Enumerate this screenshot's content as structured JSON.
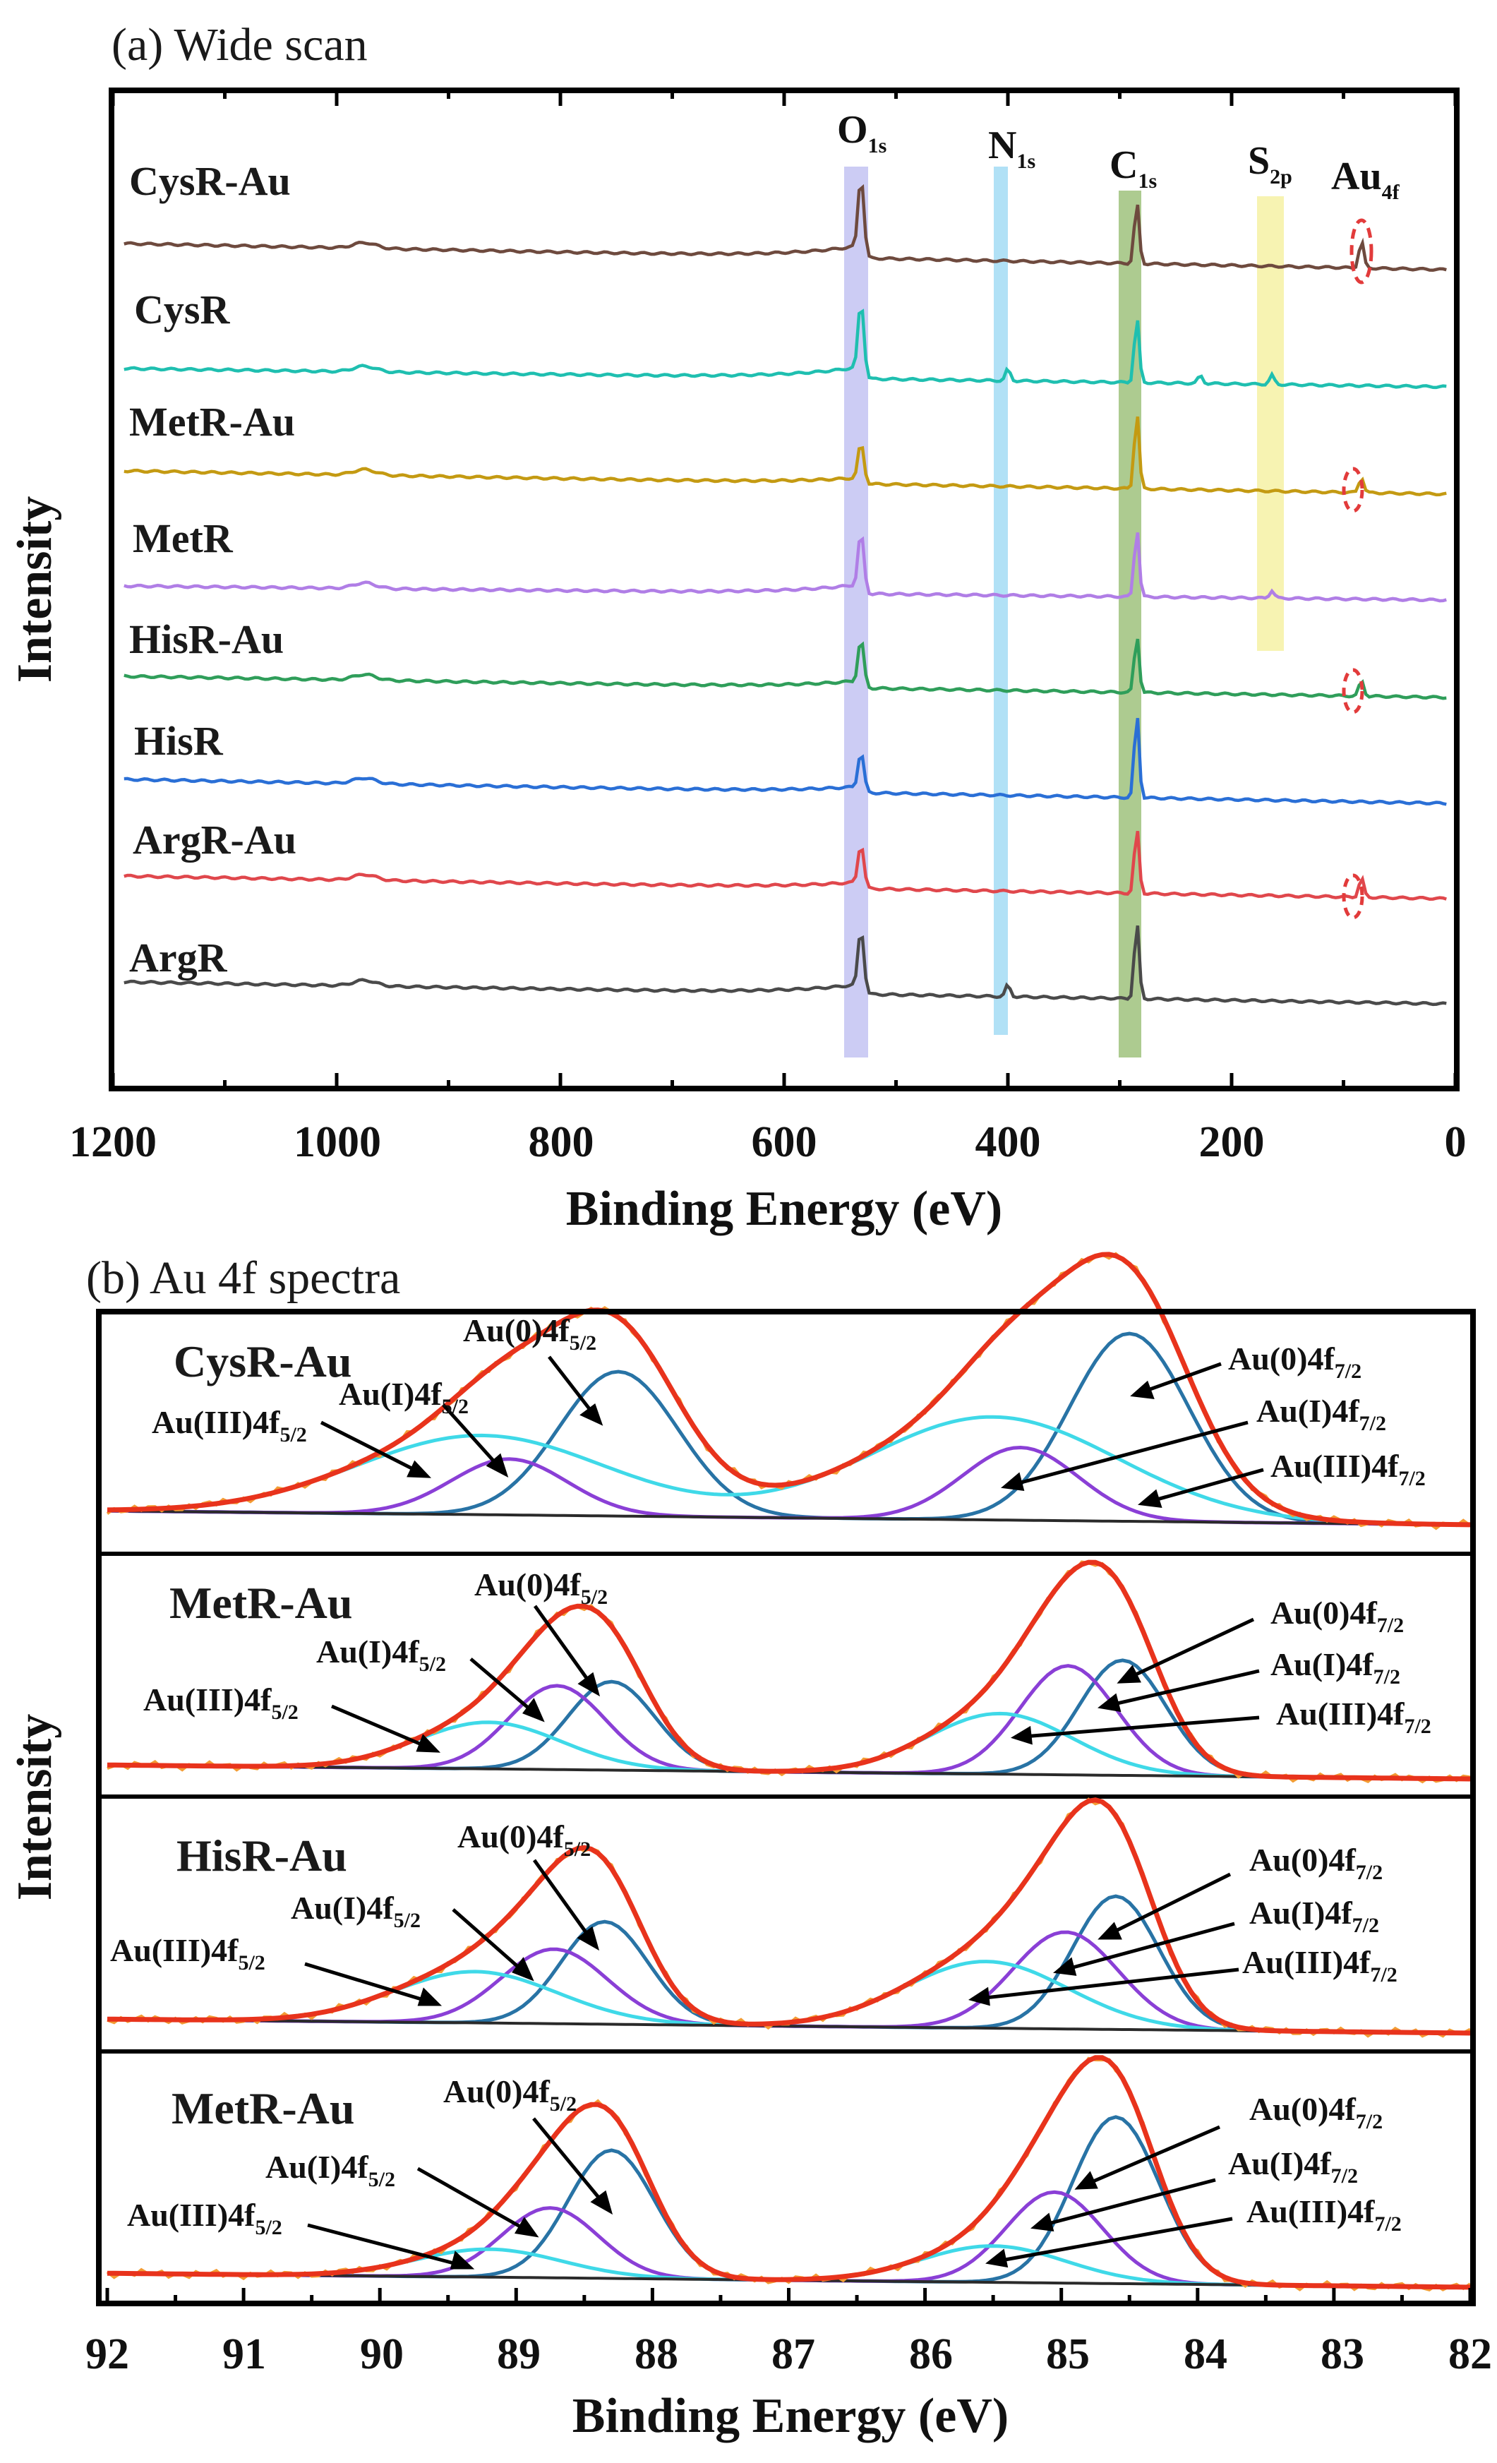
{
  "chart_data": [
    {
      "type": "line",
      "panel": "a",
      "title": "(a) Wide scan",
      "xlabel": "Binding Energy (eV)",
      "ylabel": "Intensity",
      "xlim": [
        1200,
        0
      ],
      "x_reversed": true,
      "x_ticks": [
        1200,
        1000,
        800,
        600,
        400,
        200,
        0
      ],
      "series": [
        {
          "name": "CysR-Au",
          "color": "#6e4a3e",
          "peaks": [
            {
              "x": 531,
              "h": 1.0,
              "label": "O 1s"
            },
            {
              "x": 284.8,
              "h": 0.8,
              "label": "C 1s"
            },
            {
              "x": 84,
              "h": 0.35,
              "label": "Au 4f"
            }
          ]
        },
        {
          "name": "CysR",
          "color": "#1fbfb0",
          "peaks": [
            {
              "x": 531,
              "h": 0.95
            },
            {
              "x": 400,
              "h": 0.15
            },
            {
              "x": 284.8,
              "h": 0.85
            },
            {
              "x": 228,
              "h": 0.1
            },
            {
              "x": 164,
              "h": 0.12
            }
          ]
        },
        {
          "name": "MetR-Au",
          "color": "#c49a12",
          "peaks": [
            {
              "x": 531,
              "h": 0.5
            },
            {
              "x": 284.8,
              "h": 1.0
            },
            {
              "x": 84,
              "h": 0.2
            }
          ]
        },
        {
          "name": "MetR",
          "color": "#b07ee6",
          "peaks": [
            {
              "x": 531,
              "h": 0.75
            },
            {
              "x": 284.8,
              "h": 0.9
            },
            {
              "x": 164,
              "h": 0.1
            }
          ]
        },
        {
          "name": "HisR-Au",
          "color": "#2f9e5a",
          "peaks": [
            {
              "x": 531,
              "h": 0.6
            },
            {
              "x": 284.8,
              "h": 0.75
            },
            {
              "x": 84,
              "h": 0.2
            }
          ]
        },
        {
          "name": "HisR",
          "color": "#2a6fd6",
          "peaks": [
            {
              "x": 531,
              "h": 0.5
            },
            {
              "x": 284.8,
              "h": 1.1
            }
          ]
        },
        {
          "name": "ArgR-Au",
          "color": "#e0474c",
          "peaks": [
            {
              "x": 531,
              "h": 0.55
            },
            {
              "x": 284.8,
              "h": 0.85
            },
            {
              "x": 84,
              "h": 0.25
            }
          ]
        },
        {
          "name": "ArgR",
          "color": "#4a4a4a",
          "peaks": [
            {
              "x": 531,
              "h": 0.8
            },
            {
              "x": 400,
              "h": 0.15
            },
            {
              "x": 284.8,
              "h": 1.0
            }
          ]
        }
      ],
      "highlight_bands": [
        {
          "label_main": "O",
          "label_sub": "1s",
          "x": 531,
          "color": "#b8b8f0"
        },
        {
          "label_main": "N",
          "label_sub": "1s",
          "x": 400,
          "color": "#a9def5"
        },
        {
          "label_main": "C",
          "label_sub": "1s",
          "x": 284.8,
          "color": "#9fc27c"
        },
        {
          "label_main": "S",
          "label_sub": "2p",
          "x": 164,
          "color": "#f5f0a8"
        },
        {
          "label_main": "Au",
          "label_sub": "4f",
          "x": 84,
          "color": "none"
        }
      ]
    },
    {
      "type": "line",
      "panel": "b",
      "title": "(b) Au 4f spectra",
      "xlabel": "Binding Energy (eV)",
      "ylabel": "Intensity",
      "xlim": [
        92,
        82
      ],
      "x_reversed": true,
      "x_ticks": [
        92,
        91,
        90,
        89,
        88,
        87,
        86,
        85,
        84,
        83,
        82
      ],
      "component_colors": {
        "envelope": "#e8331c",
        "raw": "#f39c34",
        "Au(0)": "#2873a5",
        "Au(I)": "#8a3fd6",
        "Au(III)": "#3fd9e8",
        "baseline": "#2a2a2a"
      },
      "subpanels": [
        {
          "name": "CysR-Au",
          "components": [
            {
              "state": "Au(0)",
              "c1": 88.25,
              "c2": 84.5,
              "h": 0.62,
              "w": 0.62
            },
            {
              "state": "Au(I)",
              "c1": 89.05,
              "c2": 85.3,
              "h": 0.24,
              "w": 0.6
            },
            {
              "state": "Au(III)",
              "c1": 89.25,
              "c2": 85.5,
              "h": 0.34,
              "w": 1.3
            }
          ]
        },
        {
          "name": "MetR-Au",
          "components": [
            {
              "state": "Au(0)",
              "c1": 88.3,
              "c2": 84.55,
              "h": 0.38,
              "w": 0.45
            },
            {
              "state": "Au(I)",
              "c1": 88.7,
              "c2": 84.95,
              "h": 0.36,
              "w": 0.5
            },
            {
              "state": "Au(III)",
              "c1": 89.2,
              "c2": 85.45,
              "h": 0.2,
              "w": 0.75
            }
          ]
        },
        {
          "name": "HisR-Au",
          "components": [
            {
              "state": "Au(0)",
              "c1": 88.35,
              "c2": 84.6,
              "h": 0.44,
              "w": 0.45
            },
            {
              "state": "Au(I)",
              "c1": 88.72,
              "c2": 84.97,
              "h": 0.32,
              "w": 0.55
            },
            {
              "state": "Au(III)",
              "c1": 89.3,
              "c2": 85.55,
              "h": 0.22,
              "w": 0.85
            }
          ]
        },
        {
          "name": "MetR-Au",
          "components": [
            {
              "state": "Au(0)",
              "c1": 88.3,
              "c2": 84.6,
              "h": 0.55,
              "w": 0.45
            },
            {
              "state": "Au(I)",
              "c1": 88.75,
              "c2": 85.05,
              "h": 0.3,
              "w": 0.5
            },
            {
              "state": "Au(III)",
              "c1": 89.2,
              "c2": 85.5,
              "h": 0.12,
              "w": 0.75
            }
          ]
        }
      ],
      "annotation_labels": {
        "au0_52": "Au(0)4f",
        "au1_52": "Au(I)4f",
        "au3_52": "Au(III)4f",
        "au0_72": "Au(0)4f",
        "au1_72": "Au(I)4f",
        "au3_72": "Au(III)4f",
        "sub_52": "5/2",
        "sub_72": "7/2"
      }
    }
  ]
}
